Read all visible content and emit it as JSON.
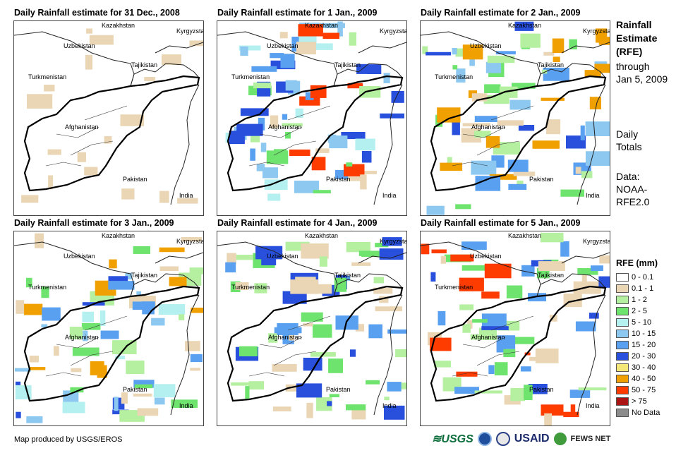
{
  "panels": [
    {
      "title": "Daily Rainfall estimate for 31 Dec., 2008",
      "labels": [
        "Kazakhstan",
        "Kyrgyzstan",
        "Uzbekistan",
        "Tajikistan",
        "Turkmenistan",
        "Afghanistan",
        "Pakistan",
        "India"
      ]
    },
    {
      "title": "Daily Rainfall estimate for 1 Jan., 2009",
      "labels": [
        "Kazakhstan",
        "Kyrgyzstan",
        "Uzbekistan",
        "Tajikistan",
        "Turkmenistan",
        "Afghanistan",
        "Pakistan",
        "India"
      ]
    },
    {
      "title": "Daily Rainfall estimate for 2 Jan., 2009",
      "labels": [
        "Kazakhstan",
        "Kyrgyzstan",
        "Uzbekistan",
        "Tajikistan",
        "Turkmenistan",
        "Afghanistan",
        "Pakistan",
        "India"
      ]
    },
    {
      "title": "Daily Rainfall estimate for 3 Jan., 2009",
      "labels": [
        "Kazakhstan",
        "Kyrgyzstan",
        "Uzbekistan",
        "Tajikistan",
        "Turkmenistan",
        "Afghanistan",
        "Pakistan",
        "India"
      ]
    },
    {
      "title": "Daily Rainfall estimate for 4 Jan., 2009",
      "labels": [
        "Kazakhstan",
        "Kyrgyzstan",
        "Uzbekistan",
        "Tajikistan",
        "Turkmenistan",
        "Afghanistan",
        "Pakistan",
        "India"
      ]
    },
    {
      "title": "Daily Rainfall estimate for 5 Jan., 2009",
      "labels": [
        "Kazakhstan",
        "Kyrgyzstan",
        "Uzbekistan",
        "Tajikistan",
        "Turkmenistan",
        "Afghanistan",
        "Pakistan",
        "India"
      ]
    }
  ],
  "side": {
    "title_lines": [
      "Rainfall",
      "Estimate",
      "(RFE)"
    ],
    "through": "through",
    "date": "Jan 5, 2009",
    "daily": "Daily",
    "totals": "Totals",
    "data_label": "Data:",
    "source_1": "NOAA-",
    "source_2": "RFE2.0"
  },
  "legend": {
    "title": "RFE (mm)",
    "items": [
      {
        "label": "0 - 0.1",
        "color": "#ffffff"
      },
      {
        "label": "0.1 - 1",
        "color": "#ead6b4"
      },
      {
        "label": "1 - 2",
        "color": "#b4f0a0"
      },
      {
        "label": "2 - 5",
        "color": "#6ee46e"
      },
      {
        "label": "5 - 10",
        "color": "#b4f0f0"
      },
      {
        "label": "10 - 15",
        "color": "#8cc8f0"
      },
      {
        "label": "15 - 20",
        "color": "#5aa0f0"
      },
      {
        "label": "20 - 30",
        "color": "#2850dc"
      },
      {
        "label": "30 - 40",
        "color": "#f5e678"
      },
      {
        "label": "40 - 50",
        "color": "#f0a000"
      },
      {
        "label": "50 - 75",
        "color": "#ff3c00"
      },
      {
        "label": "> 75",
        "color": "#aa1414"
      },
      {
        "label": "No Data",
        "color": "#8c8c8c"
      }
    ]
  },
  "footer": {
    "credit": "Map produced by USGS/EROS",
    "logo_usgs": "≋USGS",
    "logo_usaid": "USAID",
    "logo_fews": "FEWS NET"
  }
}
